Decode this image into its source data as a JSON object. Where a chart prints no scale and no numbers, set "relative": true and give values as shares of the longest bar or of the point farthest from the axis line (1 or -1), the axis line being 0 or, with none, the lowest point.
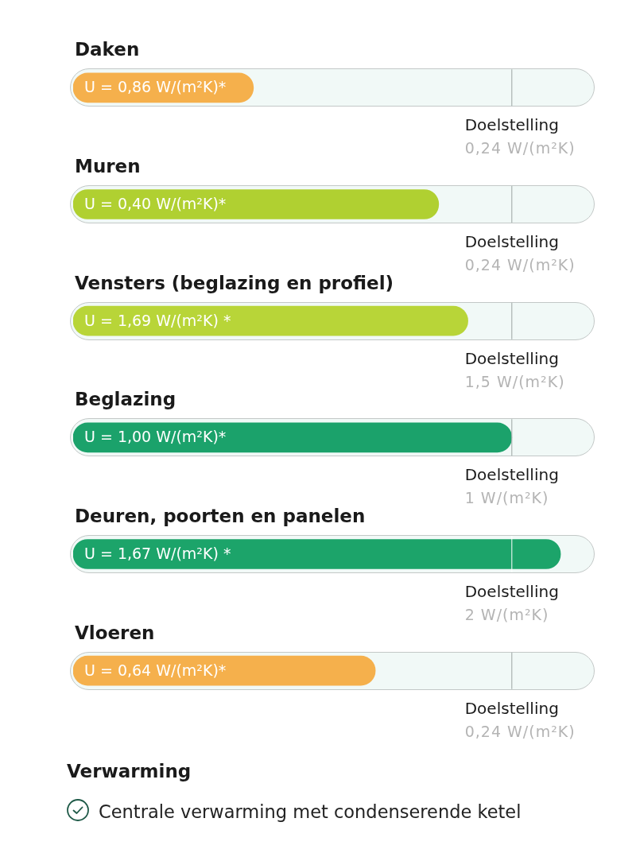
{
  "chart_data": [
    {
      "type": "bar",
      "orientation": "horizontal",
      "relative": true,
      "categories": [
        "Daken",
        "Muren",
        "Vensters (beglazing en profiel)",
        "Beglazing",
        "Deuren, poorten en panelen",
        "Vloeren"
      ],
      "values": [
        0.37,
        0.75,
        0.81,
        0.9,
        1,
        0.62
      ],
      "colors": [
        "#f5b04c",
        "#b0d031",
        "#b8d538",
        "#1ba26b",
        "#1ca46a",
        "#f5b04c"
      ],
      "annotations": [
        "U = 0,86 W/(m²K)*",
        "U = 0,40 W/(m²K)*",
        "U = 1,69 W/(m²K) *",
        "U = 1,00 W/(m²K)*",
        "U = 1,67 W/(m²K) *",
        "U = 0,64 W/(m²K)*"
      ],
      "ref_lines": [
        {
          "axis": "x",
          "value": 0.9,
          "label": "Doelstelling\n0,24 W/(m²K)"
        },
        {
          "axis": "x",
          "value": 0.9,
          "label": "Doelstelling\n0,24 W/(m²K)"
        },
        {
          "axis": "x",
          "value": 0.9,
          "label": "Doelstelling\n1,5 W/(m²K)"
        },
        {
          "axis": "x",
          "value": 0.9,
          "label": "Doelstelling\n1 W/(m²K)"
        },
        {
          "axis": "x",
          "value": 0.9,
          "label": "Doelstelling\n2 W/(m²K)"
        },
        {
          "axis": "x",
          "value": 0.9,
          "label": "Doelstelling\n0,24 W/(m²K)"
        }
      ]
    },
    {
      "type": "other",
      "title": "Verwarming",
      "annotations": [
        "Centrale verwarming met condenserende ketel"
      ]
    }
  ]
}
